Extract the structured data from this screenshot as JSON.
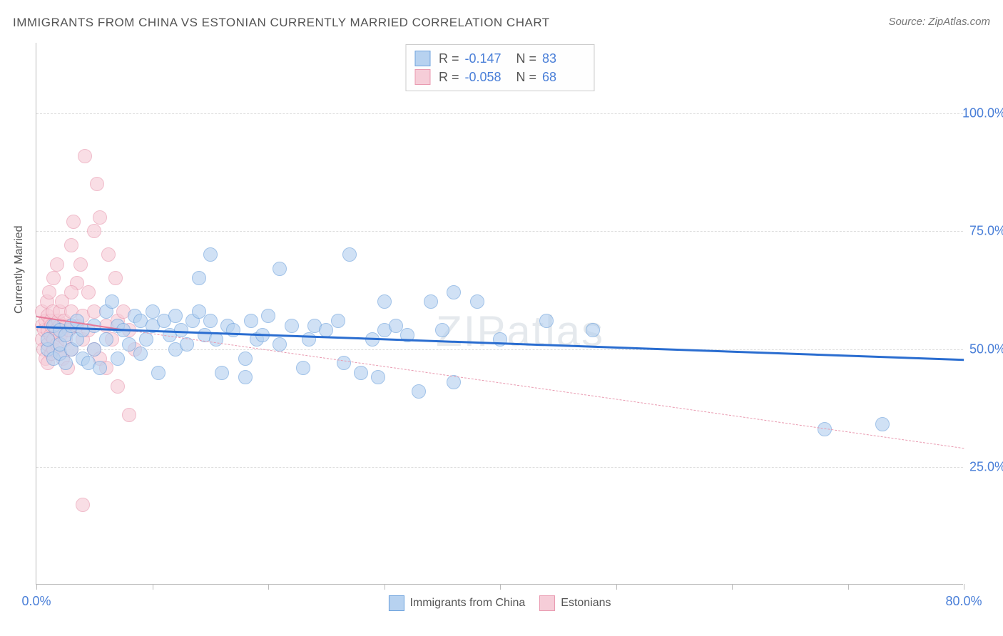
{
  "title": "IMMIGRANTS FROM CHINA VS ESTONIAN CURRENTLY MARRIED CORRELATION CHART",
  "source": "Source: ZipAtlas.com",
  "ylabel": "Currently Married",
  "watermark": "ZIPatlas",
  "chart": {
    "type": "scatter",
    "xlim": [
      0,
      80
    ],
    "ylim": [
      0,
      115
    ],
    "yticks": [
      25,
      50,
      75,
      100
    ],
    "ytick_labels": [
      "25.0%",
      "50.0%",
      "75.0%",
      "100.0%"
    ],
    "xticks": [
      0,
      10,
      20,
      30,
      40,
      50,
      60,
      70,
      80
    ],
    "xtick_labels": {
      "0": "0.0%",
      "80": "80.0%"
    },
    "background_color": "#ffffff",
    "grid_color": "#dddddd",
    "axis_color": "#bbbbbb"
  },
  "series_a": {
    "name": "Immigrants from China",
    "color_fill": "#b7d2f0",
    "color_stroke": "#6fa3dd",
    "opacity": 0.65,
    "marker_radius": 10,
    "R": "-0.147",
    "N": "83",
    "regression": {
      "x1": 0,
      "y1": 55,
      "x2": 80,
      "y2": 48,
      "color": "#2a6dd0",
      "width": 3,
      "dash": "solid"
    },
    "extrapolation": null,
    "points": [
      [
        1,
        50
      ],
      [
        1,
        52
      ],
      [
        1.5,
        48
      ],
      [
        1.5,
        55
      ],
      [
        2,
        49
      ],
      [
        2,
        51
      ],
      [
        2,
        54
      ],
      [
        2.5,
        53
      ],
      [
        2.5,
        47
      ],
      [
        3,
        55
      ],
      [
        3,
        50
      ],
      [
        3.5,
        56
      ],
      [
        3.5,
        52
      ],
      [
        4,
        48
      ],
      [
        4,
        54
      ],
      [
        4.5,
        47
      ],
      [
        5,
        55
      ],
      [
        5,
        50
      ],
      [
        5.5,
        46
      ],
      [
        6,
        58
      ],
      [
        6,
        52
      ],
      [
        6.5,
        60
      ],
      [
        7,
        55
      ],
      [
        7,
        48
      ],
      [
        7.5,
        54
      ],
      [
        8,
        51
      ],
      [
        8.5,
        57
      ],
      [
        9,
        56
      ],
      [
        9,
        49
      ],
      [
        9.5,
        52
      ],
      [
        10,
        58
      ],
      [
        10,
        55
      ],
      [
        10.5,
        45
      ],
      [
        11,
        56
      ],
      [
        11.5,
        53
      ],
      [
        12,
        57
      ],
      [
        12,
        50
      ],
      [
        12.5,
        54
      ],
      [
        13,
        51
      ],
      [
        13.5,
        56
      ],
      [
        14,
        58
      ],
      [
        14,
        65
      ],
      [
        14.5,
        53
      ],
      [
        15,
        70
      ],
      [
        15,
        56
      ],
      [
        15.5,
        52
      ],
      [
        16,
        45
      ],
      [
        16.5,
        55
      ],
      [
        17,
        54
      ],
      [
        18,
        48
      ],
      [
        18,
        44
      ],
      [
        18.5,
        56
      ],
      [
        19,
        52
      ],
      [
        19.5,
        53
      ],
      [
        20,
        57
      ],
      [
        21,
        67
      ],
      [
        21,
        51
      ],
      [
        22,
        55
      ],
      [
        23,
        46
      ],
      [
        23.5,
        52
      ],
      [
        24,
        55
      ],
      [
        25,
        54
      ],
      [
        26,
        56
      ],
      [
        26.5,
        47
      ],
      [
        27,
        70
      ],
      [
        28,
        45
      ],
      [
        29,
        52
      ],
      [
        29.5,
        44
      ],
      [
        30,
        60
      ],
      [
        30,
        54
      ],
      [
        31,
        55
      ],
      [
        32,
        53
      ],
      [
        33,
        41
      ],
      [
        34,
        60
      ],
      [
        35,
        54
      ],
      [
        36,
        62
      ],
      [
        36,
        43
      ],
      [
        38,
        60
      ],
      [
        40,
        52
      ],
      [
        44,
        56
      ],
      [
        48,
        54
      ],
      [
        68,
        33
      ],
      [
        73,
        34
      ]
    ]
  },
  "series_b": {
    "name": "Estonians",
    "color_fill": "#f6cdd8",
    "color_stroke": "#e99ab0",
    "opacity": 0.65,
    "marker_radius": 10,
    "R": "-0.058",
    "N": "68",
    "regression": {
      "x1": 0,
      "y1": 57,
      "x2": 8,
      "y2": 54,
      "color": "#e87a9a",
      "width": 2,
      "dash": "solid"
    },
    "extrapolation": {
      "x1": 8,
      "y1": 54,
      "x2": 80,
      "y2": 29,
      "color": "#e99ab0",
      "width": 1,
      "dash": "6,4"
    },
    "points": [
      [
        0.5,
        52
      ],
      [
        0.5,
        55
      ],
      [
        0.5,
        58
      ],
      [
        0.6,
        50
      ],
      [
        0.7,
        54
      ],
      [
        0.8,
        56
      ],
      [
        0.8,
        48
      ],
      [
        0.9,
        60
      ],
      [
        1,
        51
      ],
      [
        1,
        54
      ],
      [
        1,
        57
      ],
      [
        1,
        47
      ],
      [
        1.1,
        62
      ],
      [
        1.2,
        53
      ],
      [
        1.2,
        56
      ],
      [
        1.3,
        49
      ],
      [
        1.3,
        55
      ],
      [
        1.4,
        58
      ],
      [
        1.5,
        52
      ],
      [
        1.5,
        65
      ],
      [
        1.5,
        50
      ],
      [
        1.6,
        55
      ],
      [
        1.7,
        54
      ],
      [
        1.8,
        68
      ],
      [
        1.8,
        51
      ],
      [
        1.9,
        56
      ],
      [
        2,
        49
      ],
      [
        2,
        55
      ],
      [
        2,
        58
      ],
      [
        2.1,
        53
      ],
      [
        2.2,
        60
      ],
      [
        2.3,
        48
      ],
      [
        2.4,
        56
      ],
      [
        2.5,
        52
      ],
      [
        2.6,
        55
      ],
      [
        2.7,
        46
      ],
      [
        2.8,
        54
      ],
      [
        3,
        72
      ],
      [
        3,
        58
      ],
      [
        3,
        50
      ],
      [
        3.2,
        77
      ],
      [
        3.5,
        64
      ],
      [
        3.5,
        55
      ],
      [
        3.8,
        68
      ],
      [
        4,
        52
      ],
      [
        4,
        57
      ],
      [
        4.2,
        91
      ],
      [
        4.5,
        54
      ],
      [
        4.5,
        62
      ],
      [
        5,
        50
      ],
      [
        5,
        58
      ],
      [
        5,
        75
      ],
      [
        5.2,
        85
      ],
      [
        5.5,
        78
      ],
      [
        5.5,
        48
      ],
      [
        6,
        55
      ],
      [
        6,
        46
      ],
      [
        6.2,
        70
      ],
      [
        6.5,
        52
      ],
      [
        6.8,
        65
      ],
      [
        7,
        56
      ],
      [
        7,
        42
      ],
      [
        7.5,
        58
      ],
      [
        8,
        36
      ],
      [
        8,
        54
      ],
      [
        8.5,
        50
      ],
      [
        4,
        17
      ],
      [
        3,
        62
      ]
    ]
  },
  "legend": {
    "items": [
      {
        "swatch_fill": "#b7d2f0",
        "swatch_stroke": "#6fa3dd",
        "label": "Immigrants from China"
      },
      {
        "swatch_fill": "#f6cdd8",
        "swatch_stroke": "#e99ab0",
        "label": "Estonians"
      }
    ]
  }
}
